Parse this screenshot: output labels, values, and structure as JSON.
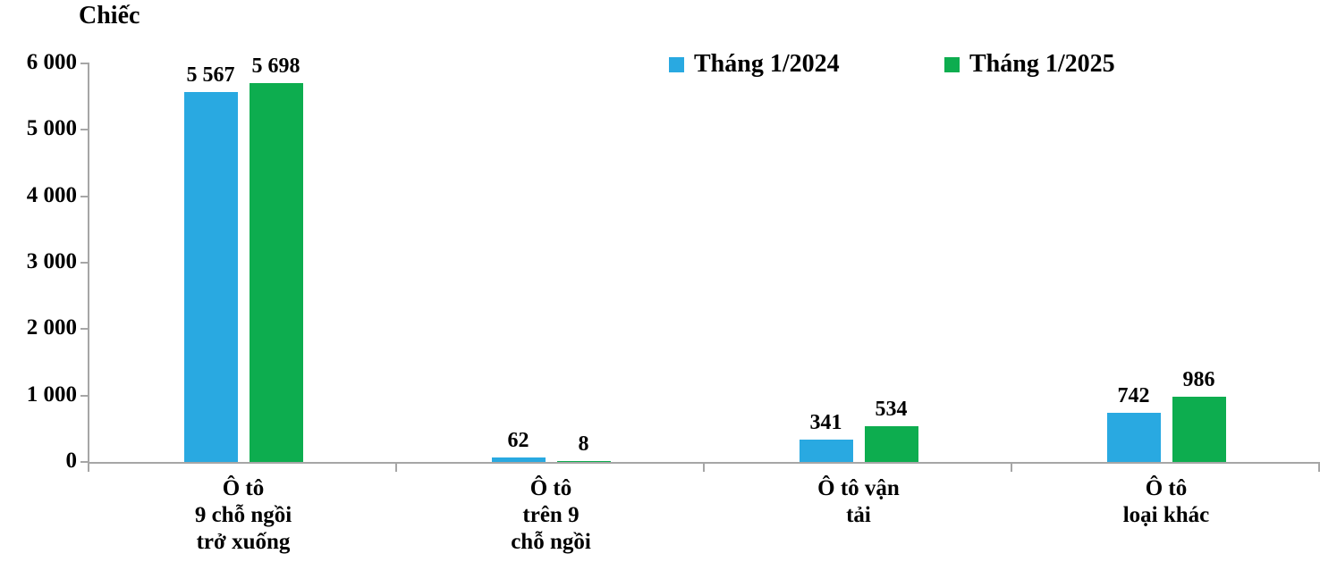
{
  "unit_title": "Chiếc",
  "colors": {
    "series_2024": "#29a9e1",
    "series_2025": "#0dad4f",
    "axis": "#a6a6a6",
    "text": "#000000",
    "background": "#ffffff"
  },
  "chart_data": {
    "type": "bar",
    "title": "Chiếc",
    "ylabel": "Chiếc",
    "xlabel": "",
    "ylim": [
      0,
      6000
    ],
    "ytick_interval": 1000,
    "grid": false,
    "legend_position": "top-center",
    "categories": [
      "Ô tô\n9 chỗ ngồi\ntrở xuống",
      "Ô tô\ntrên 9\nchỗ ngồi",
      "Ô tô vận\ntải",
      "Ô tô\nloại khác"
    ],
    "yticks": [
      {
        "value": 0,
        "label": "0"
      },
      {
        "value": 1000,
        "label": "1 000"
      },
      {
        "value": 2000,
        "label": "2 000"
      },
      {
        "value": 3000,
        "label": "3 000"
      },
      {
        "value": 4000,
        "label": "4 000"
      },
      {
        "value": 5000,
        "label": "5 000"
      },
      {
        "value": 6000,
        "label": "6 000"
      }
    ],
    "series": [
      {
        "name": "Tháng 1/2024",
        "color": "#29a9e1",
        "values": [
          5567,
          62,
          341,
          742
        ],
        "value_labels": [
          "5 567",
          "62",
          "341",
          "742"
        ]
      },
      {
        "name": "Tháng 1/2025",
        "color": "#0dad4f",
        "values": [
          5698,
          8,
          534,
          986
        ],
        "value_labels": [
          "5 698",
          "8",
          "534",
          "986"
        ]
      }
    ]
  }
}
